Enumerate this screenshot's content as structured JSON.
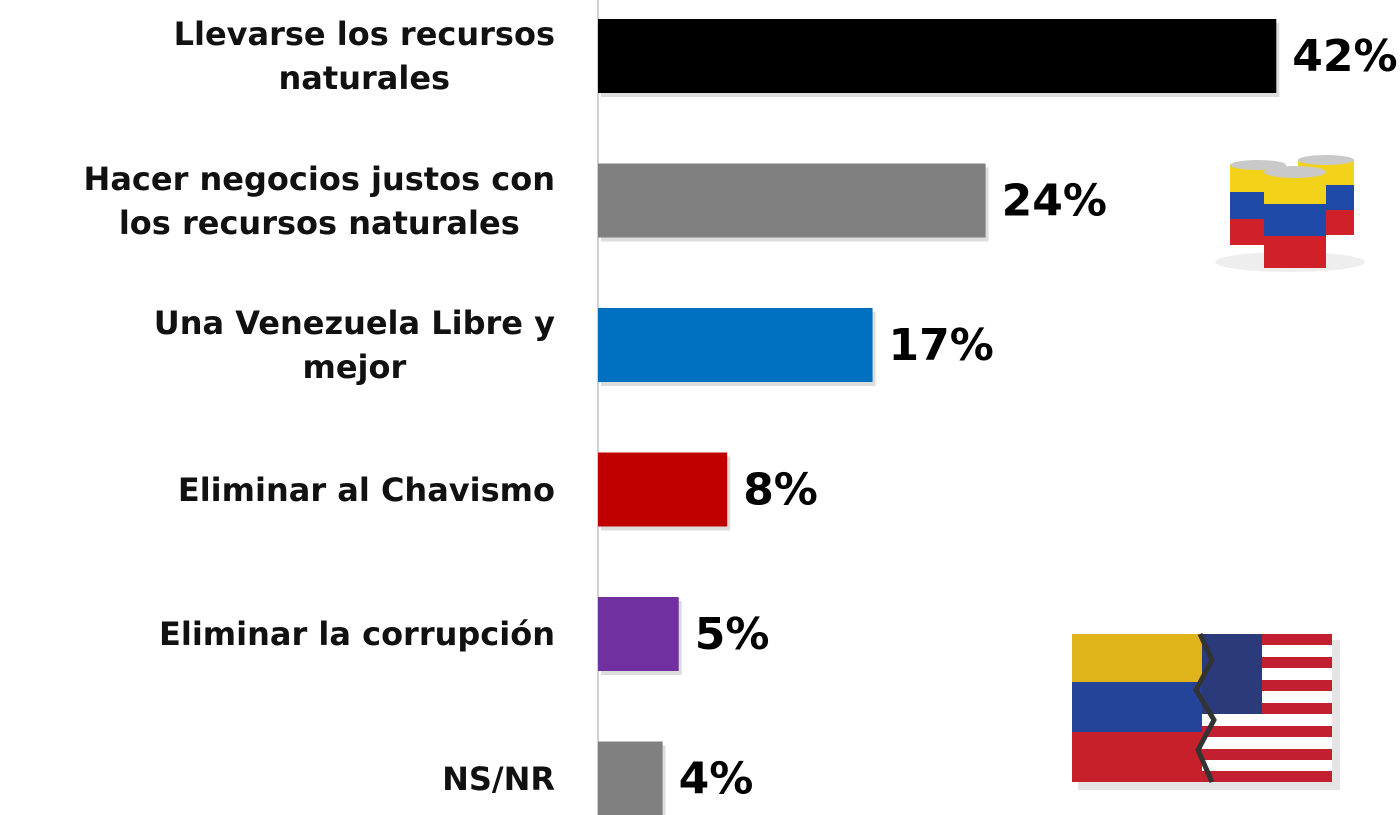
{
  "chart_data": {
    "type": "bar",
    "orientation": "horizontal",
    "categories": [
      "Llevarse los recursos\nnaturales",
      "Hacer negocios justos con\nlos recursos naturales",
      "Una Venezuela Libre y\nmejor",
      "Eliminar al Chavismo",
      "Eliminar la corrupción",
      "NS/NR"
    ],
    "values": [
      42,
      24,
      17,
      8,
      5,
      4
    ],
    "value_labels": [
      "42%",
      "24%",
      "17%",
      "8%",
      "5%",
      "4%"
    ],
    "colors": [
      "#000000",
      "#808080",
      "#0070c0",
      "#c00000",
      "#7030a0",
      "#808080"
    ]
  }
}
